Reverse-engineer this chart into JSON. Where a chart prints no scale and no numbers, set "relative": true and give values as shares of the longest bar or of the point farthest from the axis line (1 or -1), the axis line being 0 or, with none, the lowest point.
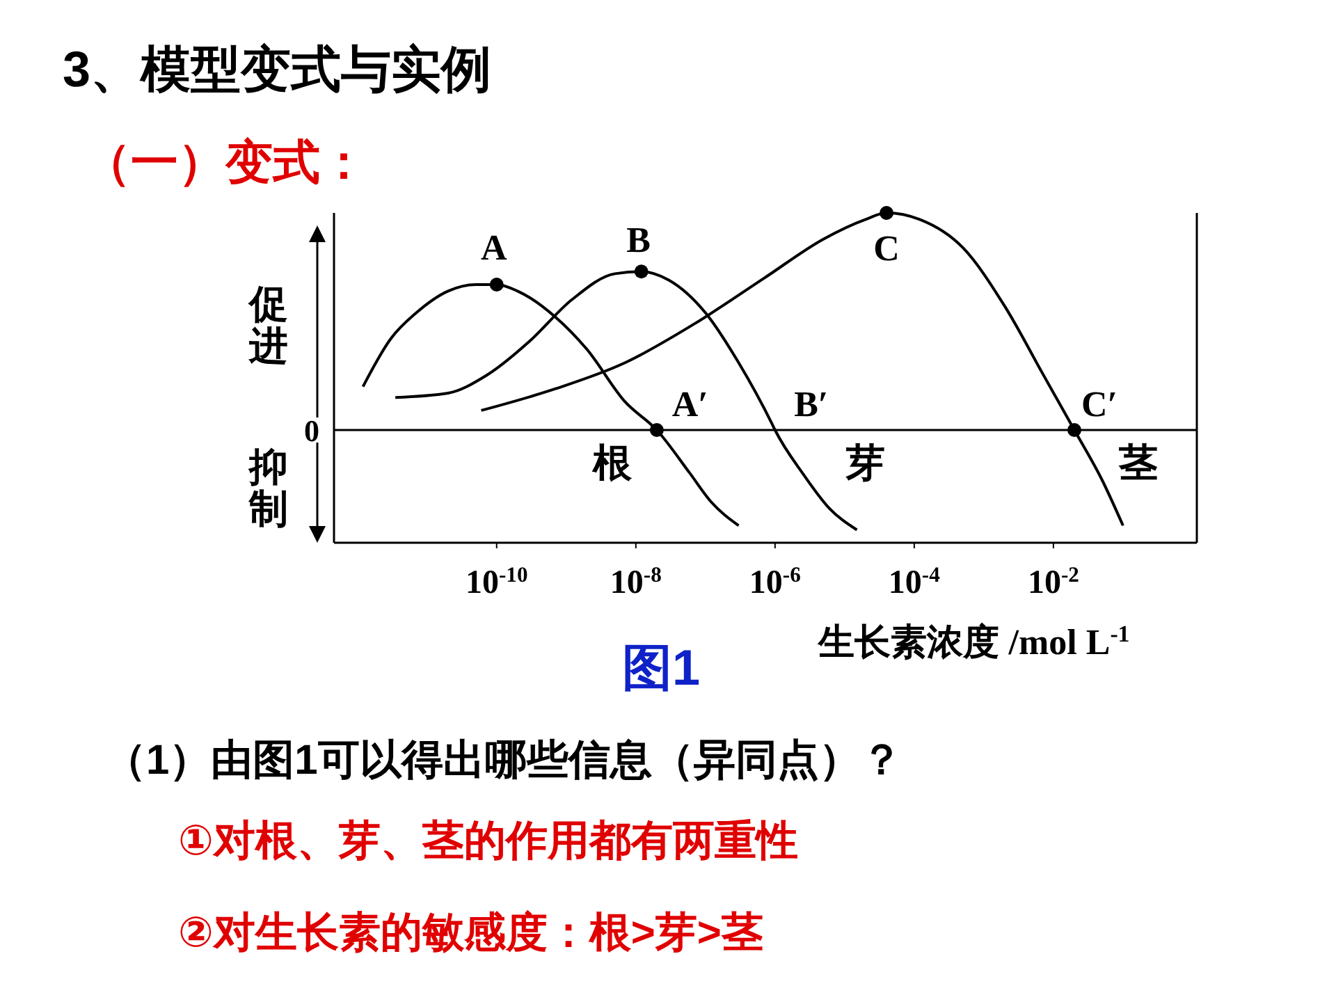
{
  "chart_data": {
    "type": "line",
    "title": "3、模型变式与实例",
    "subtitle": "（一）变式：",
    "xlabel": "生长素浓度 /mol L$^{-1}$",
    "relative": true,
    "log": "x",
    "marker": "none",
    "line_style": "solid",
    "xlim": [
      4.6e-13,
      1.15
    ],
    "xticks": [
      {
        "value": 1e-10,
        "label": "10$^{-10}$"
      },
      {
        "value": 1e-08,
        "label": "10$^{-8}$"
      },
      {
        "value": 1e-06,
        "label": "10$^{-6}$"
      },
      {
        "value": 0.0001,
        "label": "10$^{-4}$"
      },
      {
        "value": 0.01,
        "label": "10$^{-2}$"
      }
    ],
    "series": [
      {
        "color": "#000000",
        "x": [
          1.2e-12,
          3e-12,
          7e-12,
          2e-11,
          5e-11,
          1e-10,
          2e-10,
          7e-10,
          2e-09,
          7e-09,
          2e-08,
          6e-08,
          1.2e-07,
          3e-07
        ],
        "values": [
          0.2,
          0.42,
          0.54,
          0.64,
          0.67,
          0.67,
          0.64,
          0.52,
          0.37,
          0.13,
          0,
          -0.2,
          -0.33,
          -0.44
        ]
      },
      {
        "color": "#000000",
        "x": [
          3.5e-12,
          2e-11,
          7e-11,
          3e-10,
          1.2e-09,
          5e-09,
          1.2e-08,
          3e-08,
          1e-07,
          3e-07,
          9e-07,
          1e-06,
          2.5e-06,
          6e-06,
          1.5e-05
        ],
        "values": [
          0.15,
          0.17,
          0.25,
          0.41,
          0.6,
          0.72,
          0.73,
          0.69,
          0.54,
          0.31,
          0.03,
          0,
          -0.2,
          -0.36,
          -0.46
        ]
      },
      {
        "color": "#000000",
        "x": [
          6e-11,
          7e-10,
          7e-09,
          7e-08,
          7e-07,
          5e-06,
          2e-05,
          4e-05,
          0.00012,
          0.0005,
          0.002,
          0.007,
          0.02,
          0.05,
          0.1
        ],
        "values": [
          0.09,
          0.19,
          0.31,
          0.49,
          0.7,
          0.88,
          0.97,
          1,
          0.97,
          0.84,
          0.57,
          0.26,
          0,
          -0.23,
          -0.44
        ]
      },
      {
        "type": "scatter",
        "color": "#000000",
        "marker": "circle",
        "x": [
          1e-10,
          1.2e-08,
          4e-05,
          2e-08,
          0.02
        ],
        "values": [
          0.67,
          0.73,
          1,
          0,
          0
        ]
      }
    ],
    "annotations": [
      {
        "text": "A",
        "x": 1e-10,
        "y": 0.67
      },
      {
        "text": "B",
        "x": 1.2e-08,
        "y": 0.73
      },
      {
        "text": "C",
        "x": 4e-05,
        "y": 1
      },
      {
        "text": "A′",
        "x": 2e-08,
        "y": 0
      },
      {
        "text": "B′",
        "x": 1e-06,
        "y": 0
      },
      {
        "text": "C′",
        "x": 0.02,
        "y": 0
      },
      "根",
      "芽",
      "茎",
      "促进",
      "0",
      "抑制",
      "图1",
      "（1）由图1可以得出哪些信息（异同点）？",
      "①对根、芽、茎的作用都有两重性",
      "②对生长素的敏感度：根>芽>茎"
    ]
  }
}
